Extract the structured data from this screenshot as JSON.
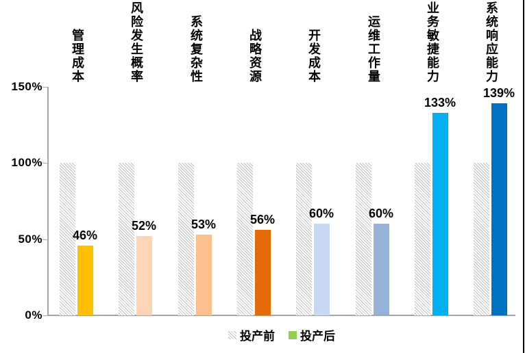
{
  "chart_data": {
    "type": "bar",
    "title": "",
    "xlabel": "",
    "ylabel": "",
    "categories": [
      "管理成本",
      "风险发生概率",
      "系统复杂性",
      "战略资源",
      "开发成本",
      "运维工作量",
      "业务敏捷能力",
      "系统响应能力"
    ],
    "series": [
      {
        "name": "投产前",
        "values": [
          100,
          100,
          100,
          100,
          100,
          100,
          100,
          100
        ],
        "style": "hatched",
        "hatch_line_color": "#BFBFBF"
      },
      {
        "name": "投产后",
        "values": [
          46,
          52,
          53,
          56,
          60,
          60,
          133,
          139
        ],
        "colors": [
          "#FFC000",
          "#FBD5B5",
          "#FAC090",
          "#E36C09",
          "#C9D9F1",
          "#95B3D7",
          "#00B0F0",
          "#0070C0"
        ]
      }
    ],
    "value_labels": [
      "46%",
      "52%",
      "53%",
      "56%",
      "60%",
      "60%",
      "133%",
      "139%"
    ],
    "y_ticks": [
      {
        "label": "150%",
        "value": 150
      },
      {
        "label": "100%",
        "value": 100
      },
      {
        "label": "50%",
        "value": 50
      },
      {
        "label": "0%",
        "value": 0
      }
    ],
    "ylim": [
      0,
      150
    ],
    "grid": false,
    "legend_position": "bottom",
    "legend": [
      {
        "label": "投产前",
        "swatch": "hatched"
      },
      {
        "label": "投产后",
        "swatch_color": "#92D050"
      }
    ],
    "axis_color": "#A6A6A6",
    "text_color": "#000000"
  }
}
